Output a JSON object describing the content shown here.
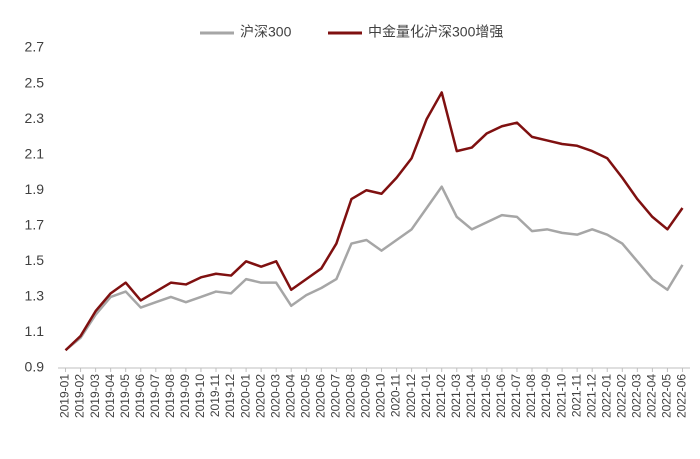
{
  "chart_data": {
    "type": "line",
    "categories": [
      "2019-01",
      "2019-02",
      "2019-03",
      "2019-04",
      "2019-05",
      "2019-06",
      "2019-07",
      "2019-08",
      "2019-09",
      "2019-10",
      "2019-11",
      "2019-12",
      "2020-01",
      "2020-02",
      "2020-03",
      "2020-04",
      "2020-05",
      "2020-06",
      "2020-07",
      "2020-08",
      "2020-09",
      "2020-10",
      "2020-11",
      "2020-12",
      "2021-01",
      "2021-02",
      "2021-03",
      "2021-04",
      "2021-05",
      "2021-06",
      "2021-07",
      "2021-08",
      "2021-09",
      "2021-10",
      "2021-11",
      "2021-12",
      "2022-01",
      "2022-02",
      "2022-03",
      "2022-04",
      "2022-05",
      "2022-06"
    ],
    "series": [
      {
        "name": "沪深300",
        "color": "#a6a6a6",
        "values": [
          1.0,
          1.07,
          1.2,
          1.3,
          1.33,
          1.24,
          1.27,
          1.3,
          1.27,
          1.3,
          1.33,
          1.32,
          1.4,
          1.38,
          1.38,
          1.25,
          1.31,
          1.35,
          1.4,
          1.6,
          1.62,
          1.56,
          1.62,
          1.68,
          1.8,
          1.92,
          1.75,
          1.68,
          1.72,
          1.76,
          1.75,
          1.67,
          1.68,
          1.66,
          1.65,
          1.68,
          1.65,
          1.6,
          1.5,
          1.4,
          1.34,
          1.48
        ]
      },
      {
        "name": "中金量化沪深300增强",
        "color": "#7f1010",
        "values": [
          1.0,
          1.08,
          1.22,
          1.32,
          1.38,
          1.28,
          1.33,
          1.38,
          1.37,
          1.41,
          1.43,
          1.42,
          1.5,
          1.47,
          1.5,
          1.34,
          1.4,
          1.46,
          1.6,
          1.85,
          1.9,
          1.88,
          1.97,
          2.08,
          2.3,
          2.45,
          2.12,
          2.14,
          2.22,
          2.26,
          2.28,
          2.2,
          2.18,
          2.16,
          2.15,
          2.12,
          2.08,
          1.97,
          1.85,
          1.75,
          1.68,
          1.8
        ]
      }
    ],
    "ylim": [
      0.9,
      2.7
    ],
    "yticks": [
      0.9,
      1.1,
      1.3,
      1.5,
      1.7,
      1.9,
      2.1,
      2.3,
      2.5,
      2.7
    ],
    "grid": false,
    "legend": "top"
  }
}
